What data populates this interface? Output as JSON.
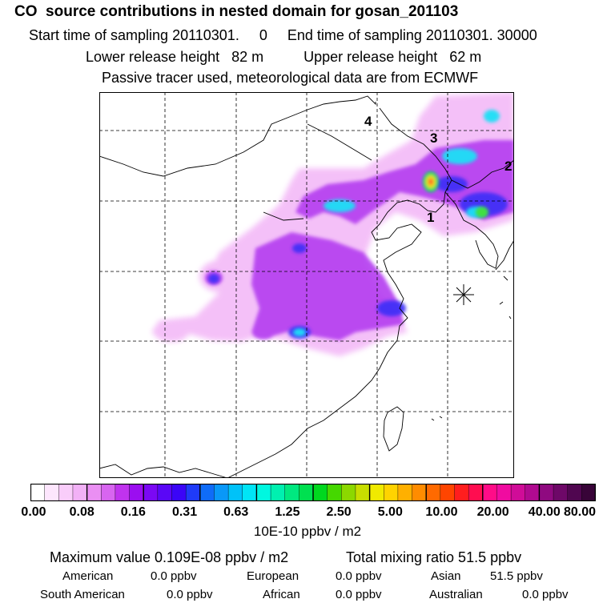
{
  "header": {
    "title": "CO  source contributions in nested domain for gosan_201103",
    "sampling": "Start time of sampling 20110301.     0     End time of sampling 20110301. 30000",
    "release": "Lower release height   82 m          Upper release height   62 m",
    "tracer": "Passive tracer used, meteorological data are from ECMWF"
  },
  "map": {
    "source_markers": [
      "1",
      "2",
      "3",
      "4"
    ],
    "receptor_icon": "asterisk-receptor-icon"
  },
  "colorbar": {
    "ticks": [
      "0.00",
      "0.08",
      "0.16",
      "0.31",
      "0.63",
      "1.25",
      "2.50",
      "5.00",
      "10.00",
      "20.00",
      "40.00",
      "80.00"
    ],
    "units": "10E-10 ppbv / m2",
    "colors": [
      "#ffffff",
      "#fde6fd",
      "#f9cdfa",
      "#f2b1f6",
      "#ea8ff3",
      "#d865f0",
      "#c033ee",
      "#9b0ef0",
      "#7b08f4",
      "#5a07f6",
      "#3b05f7",
      "#1f3bf8",
      "#0f6cf8",
      "#0998f8",
      "#00c2f8",
      "#00e5f6",
      "#00f7e0",
      "#00f0b0",
      "#00e880",
      "#00e050",
      "#00d81f",
      "#45d800",
      "#8cd800",
      "#c8de00",
      "#f0ea00",
      "#ffd300",
      "#ffb000",
      "#ff8c00",
      "#ff6a00",
      "#ff4500",
      "#ff1e1e",
      "#ff0d50",
      "#ff0c88",
      "#f00ca0",
      "#d00c98",
      "#b00a90",
      "#8f0a80",
      "#6e0868",
      "#500650",
      "#380438"
    ],
    "major_every": 4
  },
  "stats": {
    "max_label": "Maximum value  0.109E-08 ppbv / m2",
    "total_label": "Total mixing ratio       51.5 ppbv",
    "american_label": "American",
    "american_value": "0.0 ppbv",
    "european_label": "European",
    "european_value": "0.0 ppbv",
    "asian_label": "Asian",
    "asian_value": "51.5 ppbv",
    "south_american_label": "South American",
    "south_american_value": "0.0 ppbv",
    "african_label": "African",
    "african_value": "0.0 ppbv",
    "australian_label": "Australian",
    "australian_value": "0.0 ppbv"
  }
}
